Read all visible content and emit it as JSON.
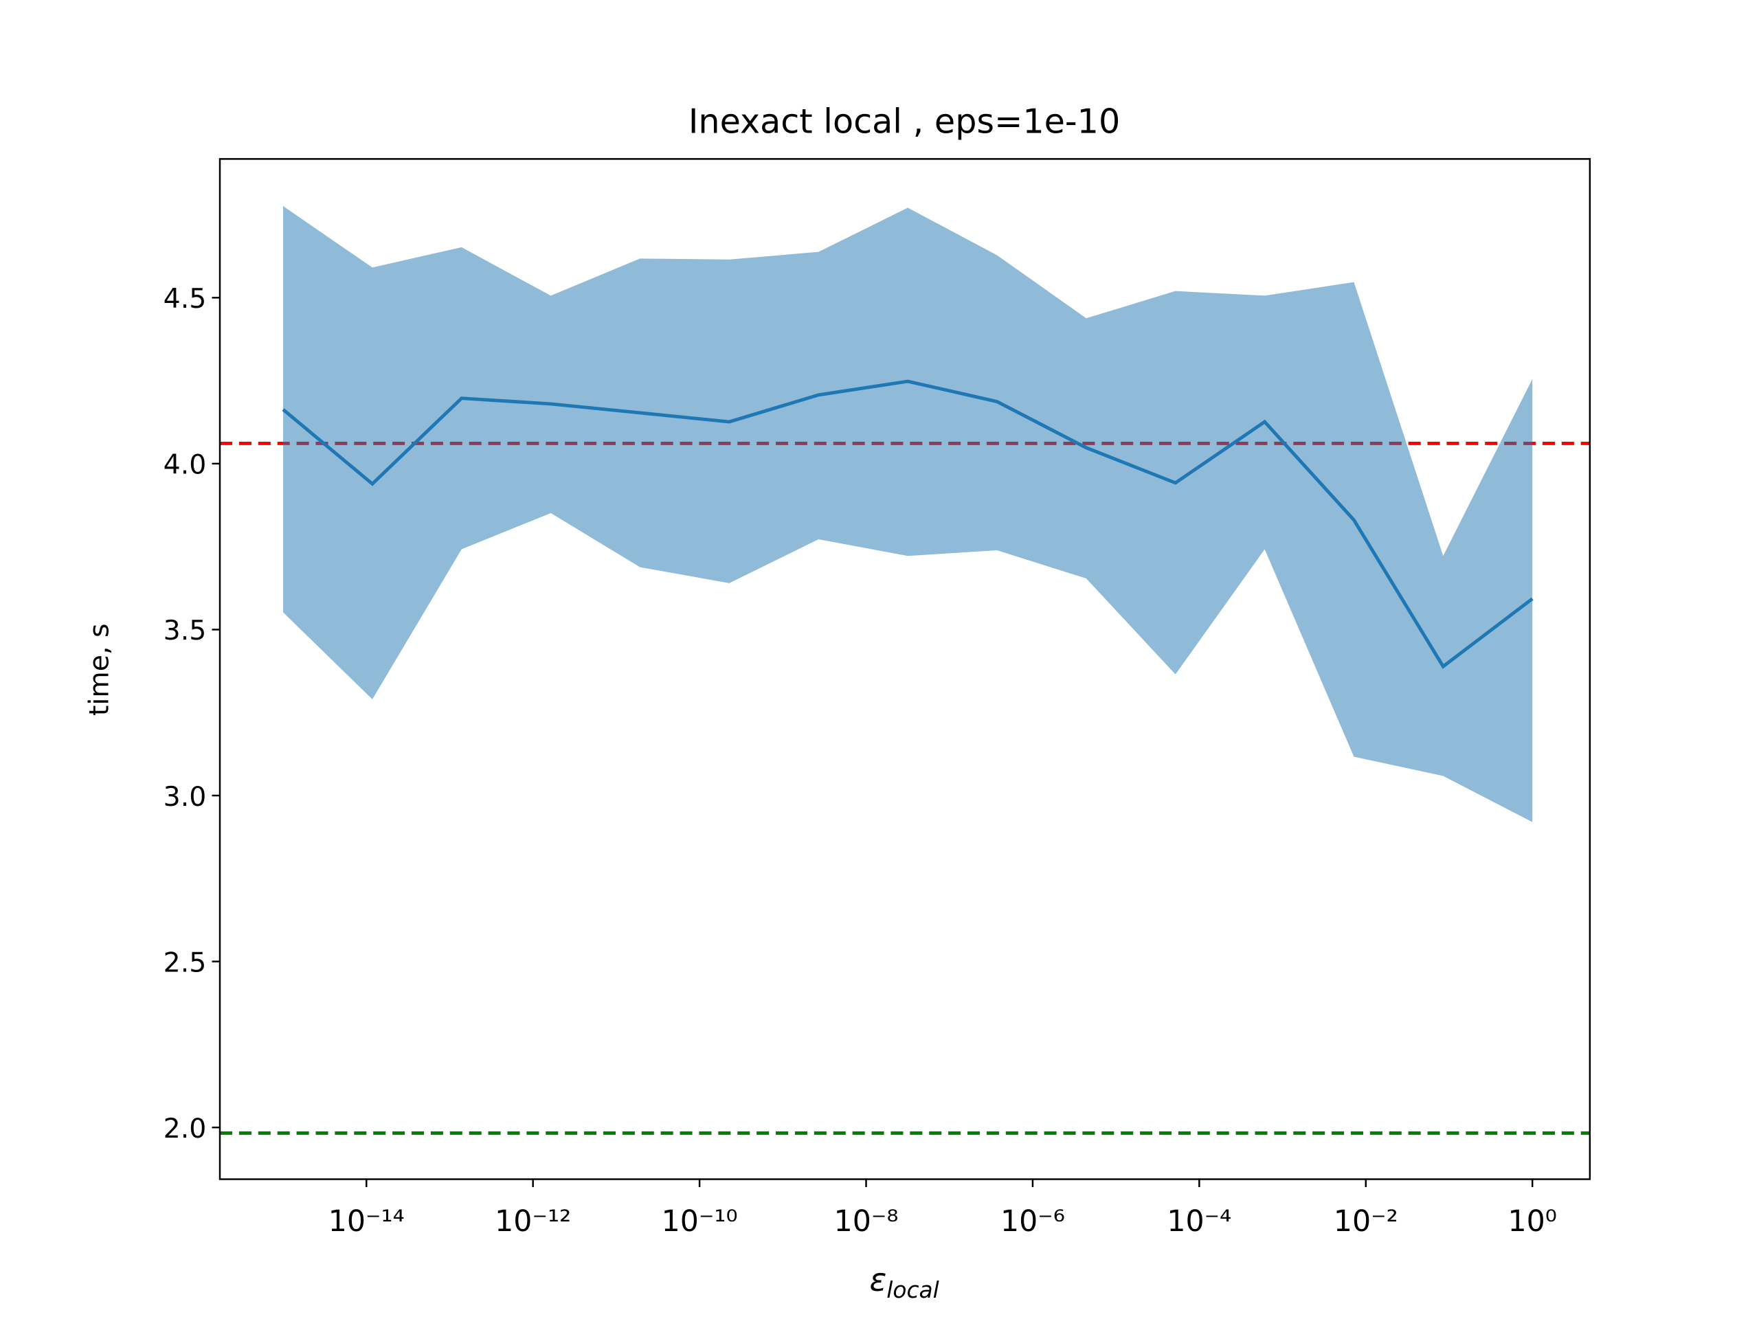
{
  "chart_data": {
    "type": "line",
    "title": "Inexact local , eps=1e-10",
    "ylabel": "time, s",
    "xlabel": {
      "symbol": "ε",
      "subscript": "local"
    },
    "xscale": "log",
    "x": [
      1e-15,
      1.179e-14,
      1.389e-13,
      1.638e-12,
      1.931e-11,
      2.276e-10,
      2.683e-09,
      3.162e-08,
      3.728e-07,
      4.394e-06,
      5.179e-05,
      0.0006105,
      0.007197,
      0.08483,
      1
    ],
    "series": [
      {
        "color": "#1f77b4",
        "values": [
          4.163,
          3.939,
          4.197,
          4.18,
          4.153,
          4.126,
          4.207,
          4.248,
          4.187,
          4.048,
          3.942,
          4.126,
          3.83,
          3.389,
          3.593
        ],
        "upper": [
          4.776,
          4.591,
          4.652,
          4.506,
          4.618,
          4.615,
          4.638,
          4.771,
          4.628,
          4.438,
          4.52,
          4.506,
          4.547,
          3.722,
          4.255
        ],
        "lower": [
          3.552,
          3.29,
          3.742,
          3.851,
          3.688,
          3.64,
          3.772,
          3.722,
          3.739,
          3.654,
          3.365,
          3.742,
          3.117,
          3.059,
          2.92
        ]
      }
    ],
    "reference_lines": [
      {
        "value": 4.061,
        "color": "#ff0000"
      },
      {
        "value": 1.983,
        "color": "#008000"
      }
    ],
    "xlim": [
      1.74e-16,
      4.9
    ],
    "ylim": [
      1.844,
      4.918
    ],
    "xticks": [
      {
        "value": 1e-14,
        "label": "10⁻¹⁴"
      },
      {
        "value": 1e-12,
        "label": "10⁻¹²"
      },
      {
        "value": 1e-10,
        "label": "10⁻¹⁰"
      },
      {
        "value": 1e-08,
        "label": "10⁻⁸"
      },
      {
        "value": 1e-06,
        "label": "10⁻⁶"
      },
      {
        "value": 0.0001,
        "label": "10⁻⁴"
      },
      {
        "value": 0.01,
        "label": "10⁻²"
      },
      {
        "value": 1,
        "label": "10⁰"
      }
    ],
    "yticks": [
      {
        "value": 2,
        "label": "2.0"
      },
      2.5,
      {
        "value": 3,
        "label": "3.0"
      },
      3.5,
      {
        "value": 4,
        "label": "4.0"
      },
      4.5
    ]
  }
}
